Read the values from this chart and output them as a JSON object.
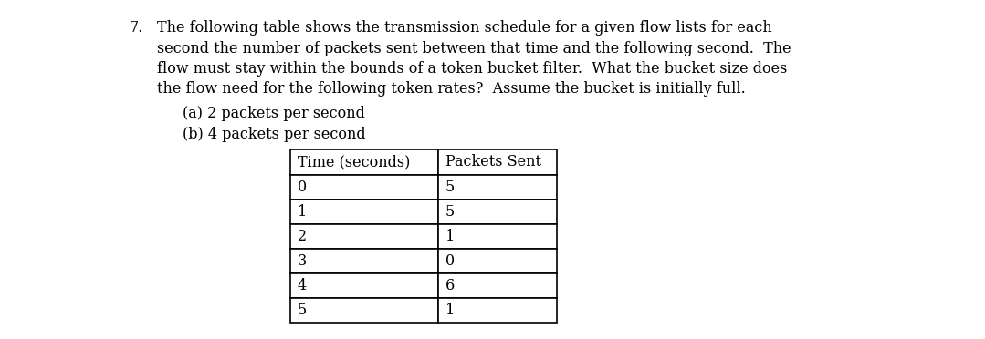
{
  "page_background": "#ffffff",
  "question_number": "7.",
  "paragraph_lines": [
    "The following table shows the transmission schedule for a given flow lists for each",
    "second the number of packets sent between that time and the following second.  The",
    "flow must stay within the bounds of a token bucket filter.  What the bucket size does",
    "the flow need for the following token rates?  Assume the bucket is initially full."
  ],
  "sub_items": [
    "(a) 2 packets per second",
    "(b) 4 packets per second"
  ],
  "table_headers": [
    "Time (seconds)",
    "Packets Sent"
  ],
  "table_data": [
    [
      "0",
      "5"
    ],
    [
      "1",
      "5"
    ],
    [
      "2",
      "1"
    ],
    [
      "3",
      "0"
    ],
    [
      "4",
      "6"
    ],
    [
      "5",
      "1"
    ]
  ],
  "font_family": "DejaVu Serif",
  "paragraph_fontsize": 11.5,
  "table_fontsize": 11.5,
  "text_color": "#000000"
}
